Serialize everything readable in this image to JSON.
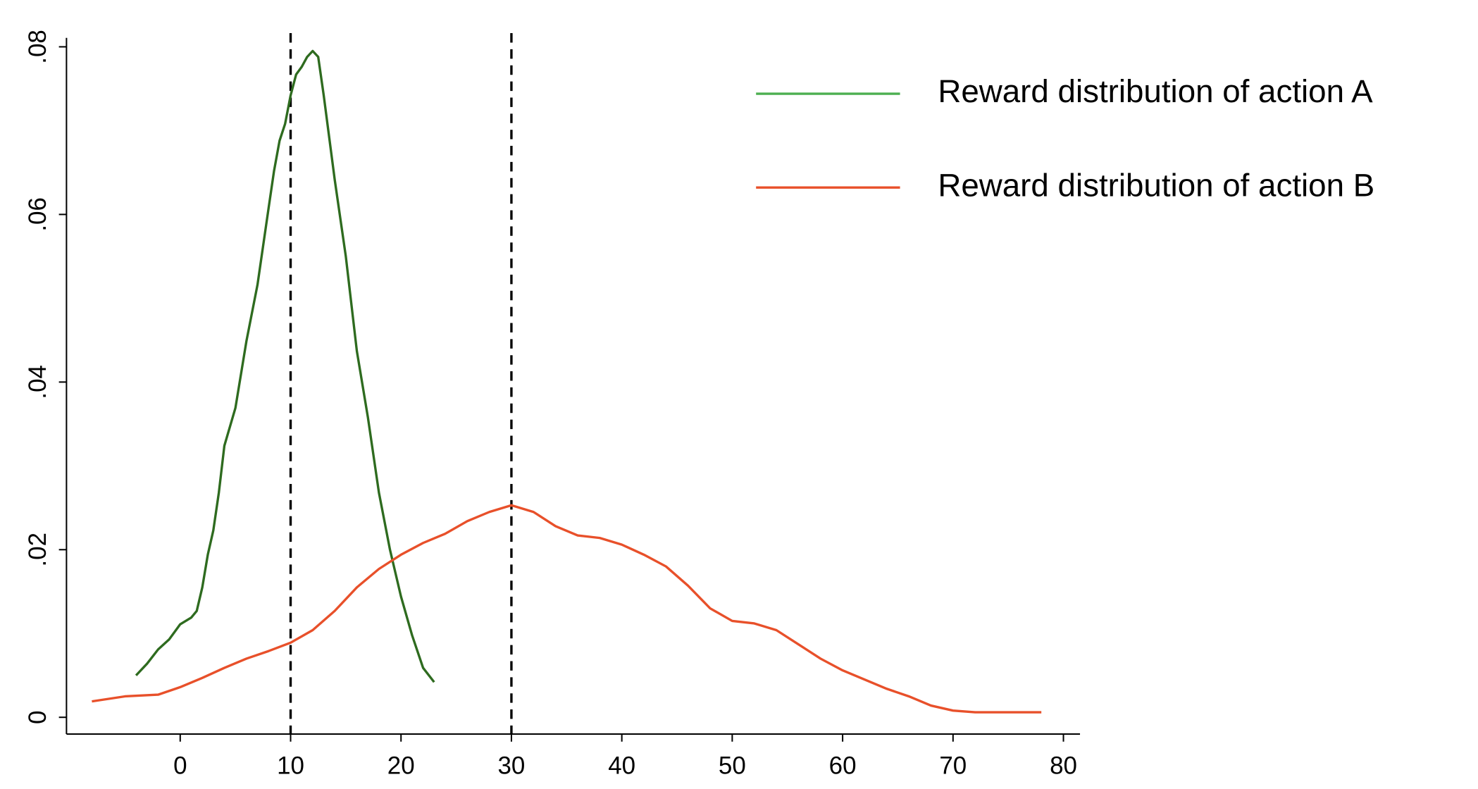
{
  "chart_data": {
    "type": "line",
    "xlim": [
      -10.3,
      81.5
    ],
    "ylim": [
      -0.002,
      0.0805
    ],
    "xticks": [
      0,
      10,
      20,
      30,
      40,
      50,
      60,
      70,
      80
    ],
    "yticks": [
      0,
      {
        "value": 0.02,
        "label": ".02"
      },
      {
        "value": 0.04,
        "label": ".04"
      },
      {
        "value": 0.06,
        "label": ".06"
      },
      {
        "value": 0.08,
        "label": ".08"
      }
    ],
    "vlines": [
      10,
      30
    ],
    "vline_color": "#000000",
    "legend_position": "top-right",
    "grid": false,
    "series": [
      {
        "name": "Reward distribution of action A",
        "color": "#2e6b1f",
        "legend_color": "#4caf50",
        "x": [
          -4,
          -3,
          -2,
          -1,
          0,
          1,
          1.5,
          2,
          2.5,
          3,
          3.5,
          4,
          5,
          6,
          7,
          8,
          8.5,
          9,
          9.5,
          10,
          10.5,
          11,
          11.5,
          12,
          12.5,
          13,
          14,
          15,
          16,
          17,
          18,
          19,
          20,
          21,
          22,
          23
        ],
        "values": [
          0.005,
          0.0064,
          0.0081,
          0.0093,
          0.0111,
          0.0119,
          0.0127,
          0.0155,
          0.0194,
          0.0223,
          0.0268,
          0.0324,
          0.0369,
          0.0449,
          0.0516,
          0.0607,
          0.0652,
          0.0688,
          0.0708,
          0.0742,
          0.0767,
          0.0776,
          0.0788,
          0.0795,
          0.0788,
          0.0742,
          0.0641,
          0.055,
          0.0437,
          0.0358,
          0.0268,
          0.02,
          0.0144,
          0.0098,
          0.0059,
          0.0042
        ]
      },
      {
        "name": "Reward distribution of action B",
        "color": "#e8502a",
        "legend_color": "#e8502a",
        "x": [
          -8,
          -5,
          -2,
          0,
          2,
          4,
          6,
          8,
          10,
          12,
          14,
          16,
          18,
          20,
          22,
          24,
          26,
          28,
          30,
          32,
          34,
          36,
          38,
          40,
          42,
          44,
          46,
          48,
          50,
          52,
          54,
          56,
          58,
          60,
          62,
          64,
          66,
          68,
          70,
          72,
          76,
          78
        ],
        "values": [
          0.0019,
          0.0025,
          0.0027,
          0.0036,
          0.0047,
          0.0059,
          0.007,
          0.0079,
          0.0089,
          0.0104,
          0.0127,
          0.0155,
          0.0177,
          0.0194,
          0.0208,
          0.0219,
          0.0234,
          0.0245,
          0.0253,
          0.0245,
          0.0228,
          0.0217,
          0.0214,
          0.0206,
          0.0194,
          0.018,
          0.0157,
          0.013,
          0.0115,
          0.0112,
          0.0104,
          0.0087,
          0.007,
          0.0056,
          0.0045,
          0.0034,
          0.0025,
          0.0014,
          0.0008,
          0.0006,
          0.0006,
          0.0006
        ]
      }
    ]
  }
}
